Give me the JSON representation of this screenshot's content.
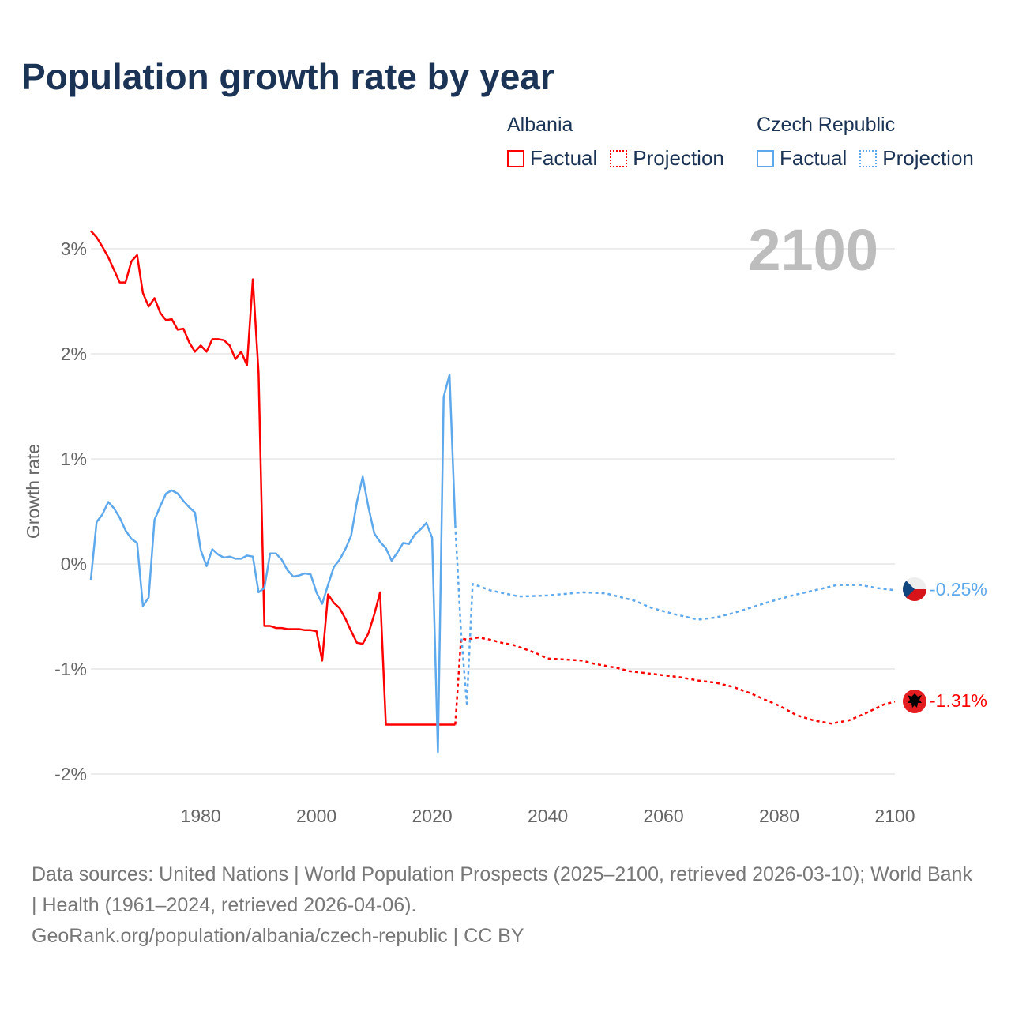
{
  "title": "Population growth rate by year",
  "legend": {
    "groups": [
      {
        "name": "Albania",
        "factual": "Factual",
        "projection": "Projection",
        "color": "#ff0000"
      },
      {
        "name": "Czech Republic",
        "factual": "Factual",
        "projection": "Projection",
        "color": "#5ea8ec"
      }
    ]
  },
  "current_year_label": "2100",
  "end_labels": {
    "albania": "-1.31%",
    "czech": "-0.25%"
  },
  "footer": {
    "sources": "Data sources: United Nations | World Population Prospects (2025–2100, retrieved 2026-03-10); World Bank | Health (1961–2024, retrieved 2026-04-06).",
    "link": "GeoRank.org/population/albania/czech-republic | CC BY"
  },
  "chart_data": {
    "type": "line",
    "title": "Population growth rate by year",
    "xlabel": "",
    "ylabel": "Growth rate",
    "xlim": [
      1961,
      2100
    ],
    "ylim": [
      -2.2,
      3.3
    ],
    "x_ticks": [
      1980,
      2000,
      2020,
      2040,
      2060,
      2080,
      2100
    ],
    "x_tick_labels": [
      "1980",
      "2000",
      "2020",
      "2040",
      "2060",
      "2080",
      "2100"
    ],
    "y_ticks": [
      -2,
      -1,
      0,
      1,
      2,
      3
    ],
    "y_tick_labels": [
      "-2%",
      "-1%",
      "0%",
      "1%",
      "2%",
      "3%"
    ],
    "grid": true,
    "legend_position": "top-right",
    "series": [
      {
        "name": "Albania Factual",
        "color": "#ff0000",
        "dash": false,
        "start_year": 1961,
        "values": [
          3.17,
          3.11,
          3.02,
          2.92,
          2.8,
          2.68,
          2.68,
          2.88,
          2.94,
          2.58,
          2.45,
          2.53,
          2.39,
          2.32,
          2.33,
          2.23,
          2.24,
          2.11,
          2.02,
          2.08,
          2.02,
          2.14,
          2.14,
          2.13,
          2.08,
          1.95,
          2.02,
          1.89,
          2.71,
          1.81,
          -0.59,
          -0.59,
          -0.61,
          -0.61,
          -0.62,
          -0.62,
          -0.62,
          -0.63,
          -0.63,
          -0.64,
          -0.92,
          -0.29,
          -0.37,
          -0.42,
          -0.52,
          -0.64,
          -0.75,
          -0.76,
          -0.66,
          -0.48,
          -0.27,
          -1.53,
          -1.53,
          -1.53,
          -1.53,
          -1.53,
          -1.53,
          -1.53,
          -1.53,
          -1.53,
          -1.53,
          -1.53,
          -1.53,
          -1.53
        ]
      },
      {
        "name": "Albania Projection",
        "color": "#ff0000",
        "dash": true,
        "points": [
          [
            2024,
            -1.53
          ],
          [
            2025,
            -0.71
          ],
          [
            2026,
            -0.72
          ],
          [
            2028,
            -0.7
          ],
          [
            2030,
            -0.72
          ],
          [
            2032,
            -0.75
          ],
          [
            2034,
            -0.77
          ],
          [
            2036,
            -0.81
          ],
          [
            2038,
            -0.85
          ],
          [
            2040,
            -0.9
          ],
          [
            2043,
            -0.91
          ],
          [
            2046,
            -0.92
          ],
          [
            2048,
            -0.95
          ],
          [
            2050,
            -0.97
          ],
          [
            2052,
            -0.99
          ],
          [
            2054,
            -1.02
          ],
          [
            2057,
            -1.04
          ],
          [
            2060,
            -1.06
          ],
          [
            2063,
            -1.08
          ],
          [
            2066,
            -1.11
          ],
          [
            2069,
            -1.13
          ],
          [
            2072,
            -1.17
          ],
          [
            2075,
            -1.23
          ],
          [
            2077,
            -1.28
          ],
          [
            2080,
            -1.35
          ],
          [
            2083,
            -1.44
          ],
          [
            2086,
            -1.49
          ],
          [
            2089,
            -1.52
          ],
          [
            2092,
            -1.49
          ],
          [
            2095,
            -1.42
          ],
          [
            2098,
            -1.34
          ],
          [
            2100,
            -1.31
          ]
        ]
      },
      {
        "name": "Czech Republic Factual",
        "color": "#5ea8ec",
        "dash": false,
        "start_year": 1961,
        "values": [
          -0.15,
          0.4,
          0.47,
          0.59,
          0.53,
          0.44,
          0.32,
          0.24,
          0.2,
          -0.4,
          -0.32,
          0.42,
          0.55,
          0.67,
          0.7,
          0.67,
          0.6,
          0.54,
          0.49,
          0.13,
          -0.02,
          0.14,
          0.09,
          0.06,
          0.07,
          0.05,
          0.05,
          0.08,
          0.07,
          -0.27,
          -0.23,
          0.1,
          0.1,
          0.04,
          -0.06,
          -0.12,
          -0.11,
          -0.09,
          -0.1,
          -0.27,
          -0.38,
          -0.2,
          -0.03,
          0.04,
          0.14,
          0.27,
          0.59,
          0.83,
          0.54,
          0.29,
          0.21,
          0.15,
          0.03,
          0.11,
          0.2,
          0.19,
          0.28,
          0.33,
          0.39,
          0.25,
          -1.79,
          1.59,
          1.8,
          0.37
        ]
      },
      {
        "name": "Czech Republic Projection",
        "color": "#5ea8ec",
        "dash": true,
        "points": [
          [
            2024,
            0.37
          ],
          [
            2025,
            -0.65
          ],
          [
            2026,
            -1.33
          ],
          [
            2027,
            -0.19
          ],
          [
            2030,
            -0.25
          ],
          [
            2035,
            -0.31
          ],
          [
            2040,
            -0.3
          ],
          [
            2046,
            -0.27
          ],
          [
            2050,
            -0.28
          ],
          [
            2055,
            -0.35
          ],
          [
            2058,
            -0.42
          ],
          [
            2062,
            -0.48
          ],
          [
            2066,
            -0.53
          ],
          [
            2069,
            -0.51
          ],
          [
            2072,
            -0.47
          ],
          [
            2076,
            -0.4
          ],
          [
            2079,
            -0.35
          ],
          [
            2083,
            -0.29
          ],
          [
            2087,
            -0.24
          ],
          [
            2090,
            -0.2
          ],
          [
            2094,
            -0.2
          ],
          [
            2097,
            -0.23
          ],
          [
            2100,
            -0.25
          ]
        ]
      }
    ]
  }
}
